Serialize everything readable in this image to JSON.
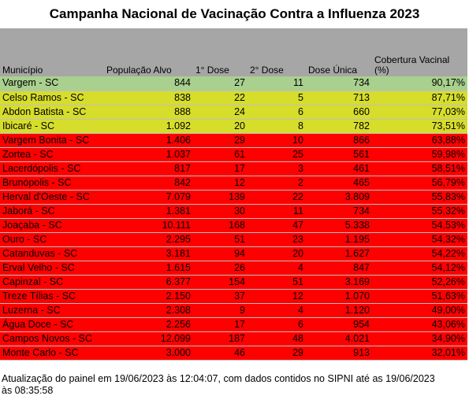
{
  "title": "Campanha Nacional de Vacinação Contra a Influenza 2023",
  "colors": {
    "header": "#a6a6a6",
    "green": "#a9d08e",
    "yellow": "#d6dd2b",
    "red": "#ff0000"
  },
  "columns": [
    "Município",
    "População Alvo",
    "1° Dose",
    "2° Dose",
    "Dose Única",
    "Cobertura Vacinal (%)"
  ],
  "rows": [
    {
      "status": "green",
      "cells": [
        "Vargem - SC",
        "844",
        "27",
        "11",
        "734",
        "90,17%"
      ]
    },
    {
      "status": "yellow",
      "cells": [
        "Celso Ramos - SC",
        "838",
        "22",
        "5",
        "713",
        "87,71%"
      ]
    },
    {
      "status": "yellow",
      "cells": [
        "Abdon Batista - SC",
        "888",
        "24",
        "6",
        "660",
        "77,03%"
      ]
    },
    {
      "status": "yellow",
      "cells": [
        "Ibicaré - SC",
        "1.092",
        "20",
        "8",
        "782",
        "73,51%"
      ]
    },
    {
      "status": "red",
      "cells": [
        "Vargem Bonita - SC",
        "1.406",
        "29",
        "10",
        "866",
        "63,88%"
      ]
    },
    {
      "status": "red",
      "cells": [
        "Zortea - SC",
        "1.037",
        "61",
        "25",
        "561",
        "59,98%"
      ]
    },
    {
      "status": "red",
      "cells": [
        "Lacerdópolis - SC",
        "817",
        "17",
        "3",
        "461",
        "58,51%"
      ]
    },
    {
      "status": "red",
      "cells": [
        "Brunópolis - SC",
        "842",
        "12",
        "2",
        "465",
        "56,79%"
      ]
    },
    {
      "status": "red",
      "cells": [
        "Herval d'Oeste - SC",
        "7.079",
        "139",
        "22",
        "3.809",
        "55,83%"
      ]
    },
    {
      "status": "red",
      "cells": [
        "Jaborá - SC",
        "1.381",
        "30",
        "11",
        "734",
        "55,32%"
      ]
    },
    {
      "status": "red",
      "cells": [
        "Joaçaba - SC",
        "10.111",
        "168",
        "47",
        "5.338",
        "54,53%"
      ]
    },
    {
      "status": "red",
      "cells": [
        "Ouro - SC",
        "2.295",
        "51",
        "23",
        "1.195",
        "54,32%"
      ]
    },
    {
      "status": "red",
      "cells": [
        "Catanduvas - SC",
        "3.181",
        "94",
        "20",
        "1.627",
        "54,22%"
      ]
    },
    {
      "status": "red",
      "cells": [
        "Erval Velho - SC",
        "1.615",
        "26",
        "4",
        "847",
        "54,12%"
      ]
    },
    {
      "status": "red",
      "cells": [
        "Capinzal - SC",
        "6.377",
        "154",
        "51",
        "3.169",
        "52,26%"
      ]
    },
    {
      "status": "red",
      "cells": [
        "Treze Tílias - SC",
        "2.150",
        "37",
        "12",
        "1.070",
        "51,63%"
      ]
    },
    {
      "status": "red",
      "cells": [
        "Luzerna - SC",
        "2.308",
        "9",
        "4",
        "1.120",
        "49,00%"
      ]
    },
    {
      "status": "red",
      "cells": [
        "Água Doce - SC",
        "2.256",
        "17",
        "6",
        "954",
        "43,06%"
      ]
    },
    {
      "status": "red",
      "cells": [
        "Campos Novos - SC",
        "12.099",
        "187",
        "48",
        "4.021",
        "34,90%"
      ]
    },
    {
      "status": "red",
      "cells": [
        "Monte Carlo - SC",
        "3.000",
        "46",
        "29",
        "913",
        "32,01%"
      ]
    }
  ],
  "footer": "Atualização do painel em 19/06/2023 às 12:04:07, com dados contidos no SIPNI até as 19/06/2023 às 08:35:58"
}
